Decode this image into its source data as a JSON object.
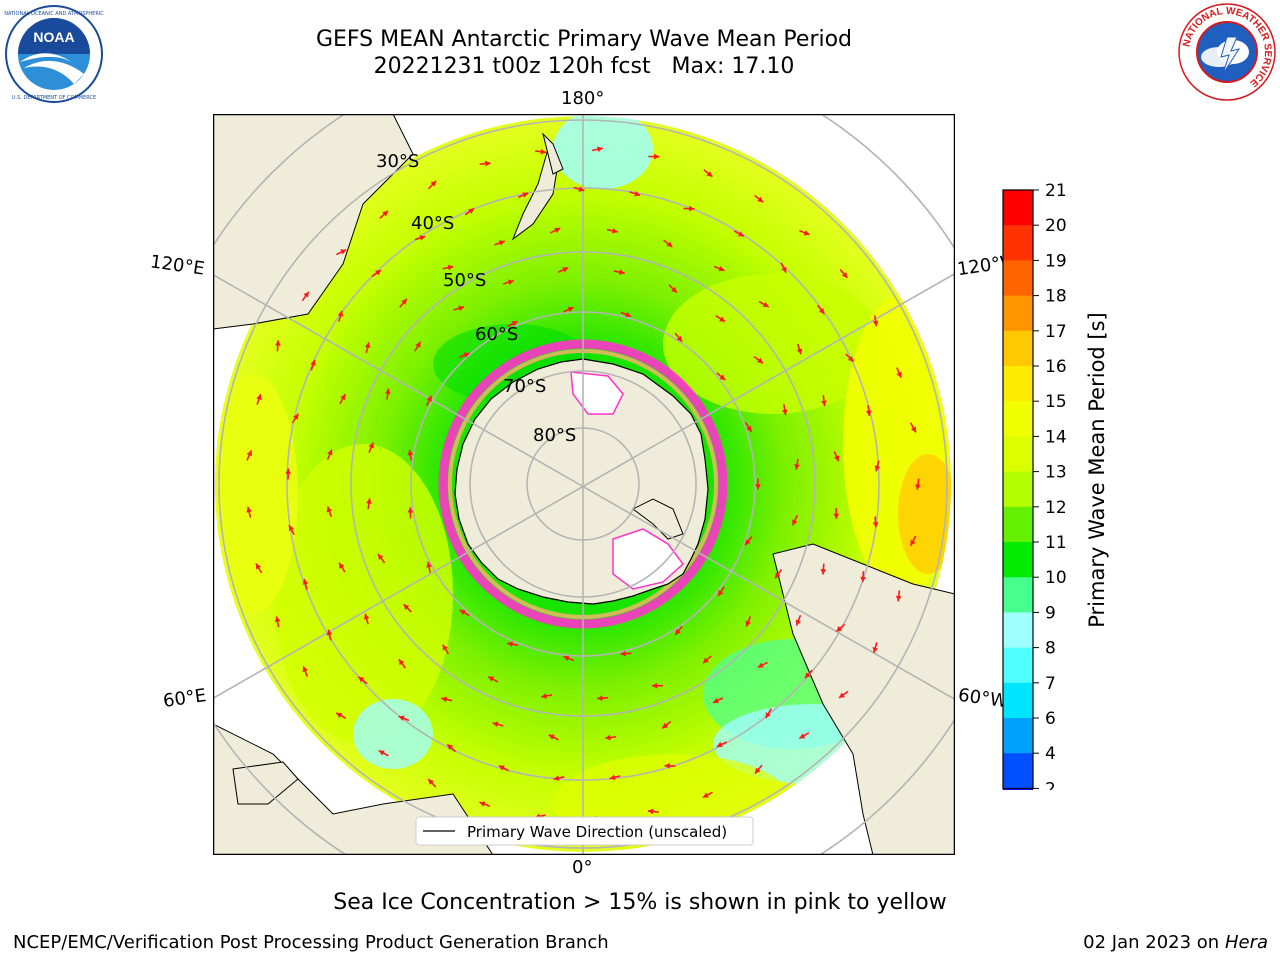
{
  "title_line1": "GEFS MEAN Antarctic Primary Wave Mean Period",
  "title_line2": "20221231 t00z 120h fcst   Max: 17.10",
  "logos": {
    "left": {
      "name": "noaa-logo",
      "text": "NOAA",
      "ring_text": "NATIONAL OCEANIC AND ATMOSPHERIC ADMINISTRATION · U.S. DEPARTMENT OF COMMERCE",
      "colors": [
        "#1a4a9c",
        "#2e8fd9",
        "#ffffff"
      ]
    },
    "right": {
      "name": "nws-logo",
      "ring_text": "NATIONAL WEATHER SERVICE",
      "colors": [
        "#d7191c",
        "#1f5fbf",
        "#ffffff"
      ]
    }
  },
  "map": {
    "projection": "south-polar-stereographic",
    "longitude_labels": [
      "180°",
      "120°E",
      "120°W",
      "60°E",
      "60°W",
      "0°"
    ],
    "latitude_labels": [
      "30°S",
      "40°S",
      "50°S",
      "60°S",
      "70°S",
      "80°S"
    ],
    "land_color": "#efedda",
    "gridline_color": "#b4b4b4",
    "arrow_color": "#ff1a1a",
    "legend": "Primary Wave Direction (unscaled)"
  },
  "colorbar": {
    "label": "Primary Wave Mean Period [s]",
    "ticks": [
      "2",
      "4",
      "6",
      "7",
      "8",
      "9",
      "10",
      "11",
      "12",
      "13",
      "14",
      "15",
      "16",
      "17",
      "18",
      "19",
      "20",
      "21"
    ],
    "colors": [
      "#0050ff",
      "#00a0ff",
      "#00e5ff",
      "#50ffff",
      "#a0ffff",
      "#46ff8c",
      "#00eb00",
      "#64f000",
      "#b4ff00",
      "#dcff00",
      "#f0ff00",
      "#ffeb00",
      "#ffc800",
      "#ff9600",
      "#ff6400",
      "#ff3200",
      "#ff0000"
    ],
    "extend_color": "#0000ff"
  },
  "subtitle": "Sea Ice Concentration > 15% is shown in pink to yellow",
  "footer": {
    "left": "NCEP/EMC/Verification Post Processing Product Generation Branch",
    "date": "02 Jan 2023 on ",
    "machine": "Hera"
  }
}
